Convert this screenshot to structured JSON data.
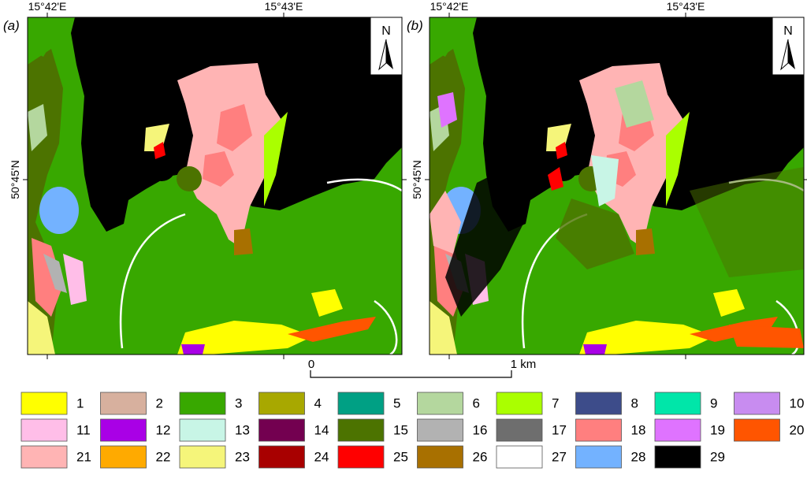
{
  "panels": [
    {
      "label": "(a)",
      "lon_labels": [
        "15°42'E",
        "15°43'E"
      ],
      "lat_label": "50°45'N",
      "north": "N"
    },
    {
      "label": "(b)",
      "lon_labels": [
        "15°42'E",
        "15°43'E"
      ],
      "lat_label": "50°45'N",
      "north": "N"
    }
  ],
  "scale_bar": {
    "start": "0",
    "end": "1 km"
  },
  "legend": [
    {
      "label": "1",
      "color": "#ffff00"
    },
    {
      "label": "2",
      "color": "#d7b09e"
    },
    {
      "label": "3",
      "color": "#38a800"
    },
    {
      "label": "4",
      "color": "#a8a800"
    },
    {
      "label": "5",
      "color": "#00a084"
    },
    {
      "label": "6",
      "color": "#b4d79e"
    },
    {
      "label": "7",
      "color": "#aaff00"
    },
    {
      "label": "8",
      "color": "#3d4c8a"
    },
    {
      "label": "9",
      "color": "#00e6a9"
    },
    {
      "label": "10",
      "color": "#c88cf0"
    },
    {
      "label": "11",
      "color": "#ffbee8"
    },
    {
      "label": "12",
      "color": "#a900e6"
    },
    {
      "label": "13",
      "color": "#c8f5e6"
    },
    {
      "label": "14",
      "color": "#730050"
    },
    {
      "label": "15",
      "color": "#4c7300"
    },
    {
      "label": "16",
      "color": "#b2b2b2"
    },
    {
      "label": "17",
      "color": "#6e6e6e"
    },
    {
      "label": "18",
      "color": "#ff7f7f"
    },
    {
      "label": "19",
      "color": "#df73ff"
    },
    {
      "label": "20",
      "color": "#ff5500"
    },
    {
      "label": "21",
      "color": "#ffb4b4"
    },
    {
      "label": "22",
      "color": "#ffaa00"
    },
    {
      "label": "23",
      "color": "#f5f57a"
    },
    {
      "label": "24",
      "color": "#a80000"
    },
    {
      "label": "25",
      "color": "#ff0000"
    },
    {
      "label": "26",
      "color": "#a87000"
    },
    {
      "label": "27",
      "color": "#ffffff"
    },
    {
      "label": "28",
      "color": "#73b2ff"
    },
    {
      "label": "29",
      "color": "#000000"
    }
  ]
}
